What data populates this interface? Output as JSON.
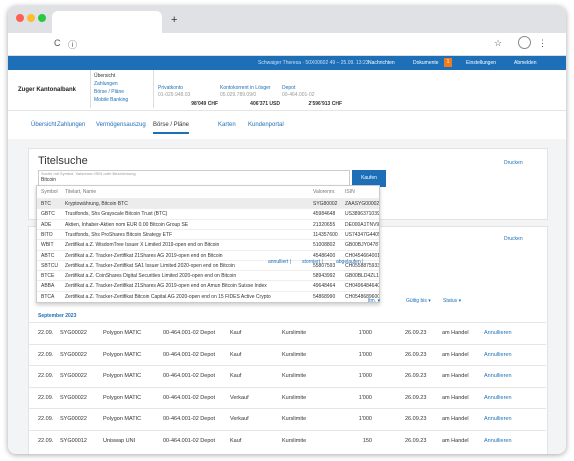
{
  "browser": {
    "new_tab": "+",
    "reload": "C",
    "info": "ⓘ",
    "star": "☆",
    "menu": "⋮"
  },
  "topbar": {
    "user": "Schwaiger Theresa · 50X00602 49 – 25.09. 13:23",
    "messages": "Nachrichten",
    "documents": "Dokumente",
    "badge": "1",
    "settings": "Einstellungen",
    "logout": "Abmelden"
  },
  "header": {
    "bank": "Zuger Kantonalbank",
    "menu": [
      "Übersicht",
      "Zahlungen",
      "Börse / Pläne",
      "Mobile Banking"
    ],
    "accounts": [
      {
        "name": "Privatkonto",
        "number": "01-029.948.03",
        "balance": "98'049 CHF"
      },
      {
        "name": "Kontokorrent in Lösger",
        "number": "05.029.789.09/0",
        "balance": "406'371 USD"
      },
      {
        "name": "Depot",
        "number": "00-464.001-02",
        "balance": "2'596'913 CHF"
      }
    ]
  },
  "tabs": [
    "Übersicht",
    "Zahlungen",
    "Vermögensauszug",
    "Börse / Pläne",
    "Karten",
    "Kundenportal"
  ],
  "search": {
    "title": "Titelsuche",
    "print": "Drucken",
    "placeholder": "Suche mit Symbol, Valorennr./ISIN oder Bezeichnung",
    "value": "Bitcoin",
    "button": "Kaufen",
    "columns": [
      "Symbol",
      "Titelart, Name",
      "Valorennr.",
      "ISIN"
    ],
    "results": [
      [
        "BTC",
        "Kryptowährung, Bitcoin BTC",
        "SYG80002",
        "ZAASYG000021"
      ],
      [
        "GBTC",
        "Trustfonds, Shs Grayscale Bitcoin Trust (BTC)",
        "45984648",
        "US3896371039"
      ],
      [
        "ADE",
        "Aktien, Inhaber-Aktien nom EUR 0.00 Bitcoin Group SE",
        "21320655",
        "DE000A1TNV91"
      ],
      [
        "BITO",
        "Trustfonds, Shs ProShares Bitcoin Strategy ETF",
        "114357600",
        "US74347G4405"
      ],
      [
        "WBIT",
        "Zertifikat a.Z. WisdomTree Issuer X Limited 2019-open end on Bitcoin",
        "51008802",
        "GB00BJY04787"
      ],
      [
        "ABTC",
        "Zertifikat a.Z. Tracker-Zertifikat 21Shares AG 2019-open end on Bitcoin",
        "45486400",
        "CH0454664001"
      ],
      [
        "SBTCU",
        "Zertifikat a.Z. Tracker-Zertifikat SA1 Issuer Limited 2020-open end on Bitcoin",
        "55807593",
        "CH0558875933"
      ],
      [
        "BTCE",
        "Zertifikat a.Z. CoinShares Digital Securities Limited 2020-open end on Bitcoin",
        "58943992",
        "GB00BLD4ZL17"
      ],
      [
        "ABBA",
        "Zertifikat a.Z. Tracker-Zertifikat 21Shares AG 2019-open end on Amun Bitcoin Suisse Index",
        "49648464",
        "CH0496484640"
      ],
      [
        "BTCA",
        "Zertifikat a.Z. Tracker-Zertifikat Bitcoin Capital AG 2020-open end on 15 FIDES Active Crypto",
        "54868990",
        "CH0548689600"
      ]
    ]
  },
  "orders": {
    "print": "Drucken",
    "filters": [
      "annulliert |",
      "storniert |",
      "abgelaufen |"
    ],
    "columns": [
      "ltm. ▾",
      "Gültig bis ▾",
      "Status ▾"
    ],
    "month": "September 2023",
    "rows": [
      [
        "22.09.",
        "SYG00022",
        "Polygon MATIC",
        "00-464.001-02 Depot",
        "Kauf",
        "Kurslimite",
        "1'000",
        "26.09.23",
        "am Handel",
        "Annullieren"
      ],
      [
        "22.09.",
        "SYG00022",
        "Polygon MATIC",
        "00-464.001-02 Depot",
        "Kauf",
        "Kurslimite",
        "1'000",
        "26.09.23",
        "am Handel",
        "Annullieren"
      ],
      [
        "22.09.",
        "SYG00022",
        "Polygon MATIC",
        "00-464.001-02 Depot",
        "Kauf",
        "Kurslimite",
        "1'000",
        "26.09.23",
        "am Handel",
        "Annullieren"
      ],
      [
        "22.09.",
        "SYG00022",
        "Polygon MATIC",
        "00-464.001-02 Depot",
        "Verkauf",
        "Kurslimite",
        "1'000",
        "26.09.23",
        "am Handel",
        "Annullieren"
      ],
      [
        "22.09.",
        "SYG00022",
        "Polygon MATIC",
        "00-464.001-02 Depot",
        "Verkauf",
        "Kurslimite",
        "1'000",
        "26.09.23",
        "am Handel",
        "Annullieren"
      ],
      [
        "22.09.",
        "SYG00012",
        "Uniswap UNI",
        "00-464.001-02 Depot",
        "Kauf",
        "Kurslimite",
        "150",
        "26.09.23",
        "am Handel",
        "Annullieren"
      ]
    ]
  }
}
